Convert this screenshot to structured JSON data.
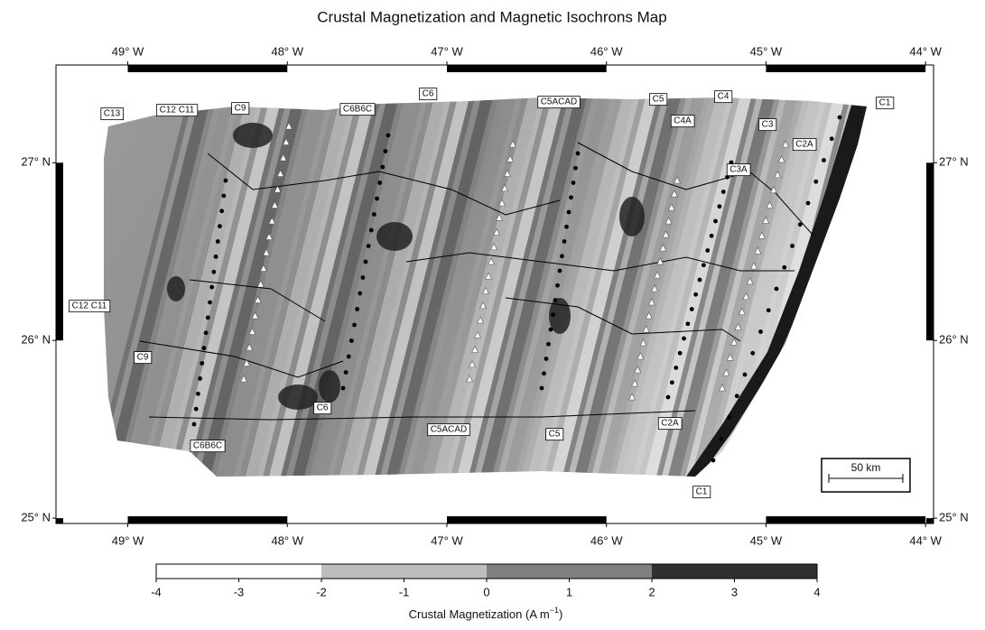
{
  "title": "Crustal Magnetization and Magnetic Isochrons Map",
  "axes": {
    "lon_lim": [
      -49.45,
      -43.95
    ],
    "lat_lim": [
      24.97,
      27.55
    ],
    "lon_ticks": [
      {
        "value": -49,
        "label": "49° W"
      },
      {
        "value": -48,
        "label": "48° W"
      },
      {
        "value": -47,
        "label": "47° W"
      },
      {
        "value": -46,
        "label": "46° W"
      },
      {
        "value": -45,
        "label": "45° W"
      },
      {
        "value": -44,
        "label": "44° W"
      }
    ],
    "lat_ticks": [
      {
        "value": 27,
        "label": "27° N"
      },
      {
        "value": 26,
        "label": "26° N"
      },
      {
        "value": 25,
        "label": "25° N"
      }
    ]
  },
  "isochron_labels": [
    "C13",
    "C12 C11",
    "C9",
    "C6B6C",
    "C6",
    "C5ACAD",
    "C5",
    "C4",
    "C4A",
    "C3",
    "C2A",
    "C3A",
    "C1",
    "C12 C11",
    "C9",
    "C6",
    "C5ACAD",
    "C5",
    "C2A",
    "C6B6C",
    "C1"
  ],
  "scale_bar": "50 km",
  "colorbar": {
    "lim": [
      -4,
      4
    ],
    "ticks": [
      -4,
      -3,
      -2,
      -1,
      0,
      1,
      2,
      3,
      4
    ],
    "class_edges": [
      -4,
      -2,
      0,
      2,
      4
    ],
    "class_colors": [
      "#ffffff",
      "#bdbdbd",
      "#808080",
      "#303030"
    ],
    "label": "Crustal Magnetization (A m",
    "label_exponent": "−1",
    "label_end": ")"
  }
}
